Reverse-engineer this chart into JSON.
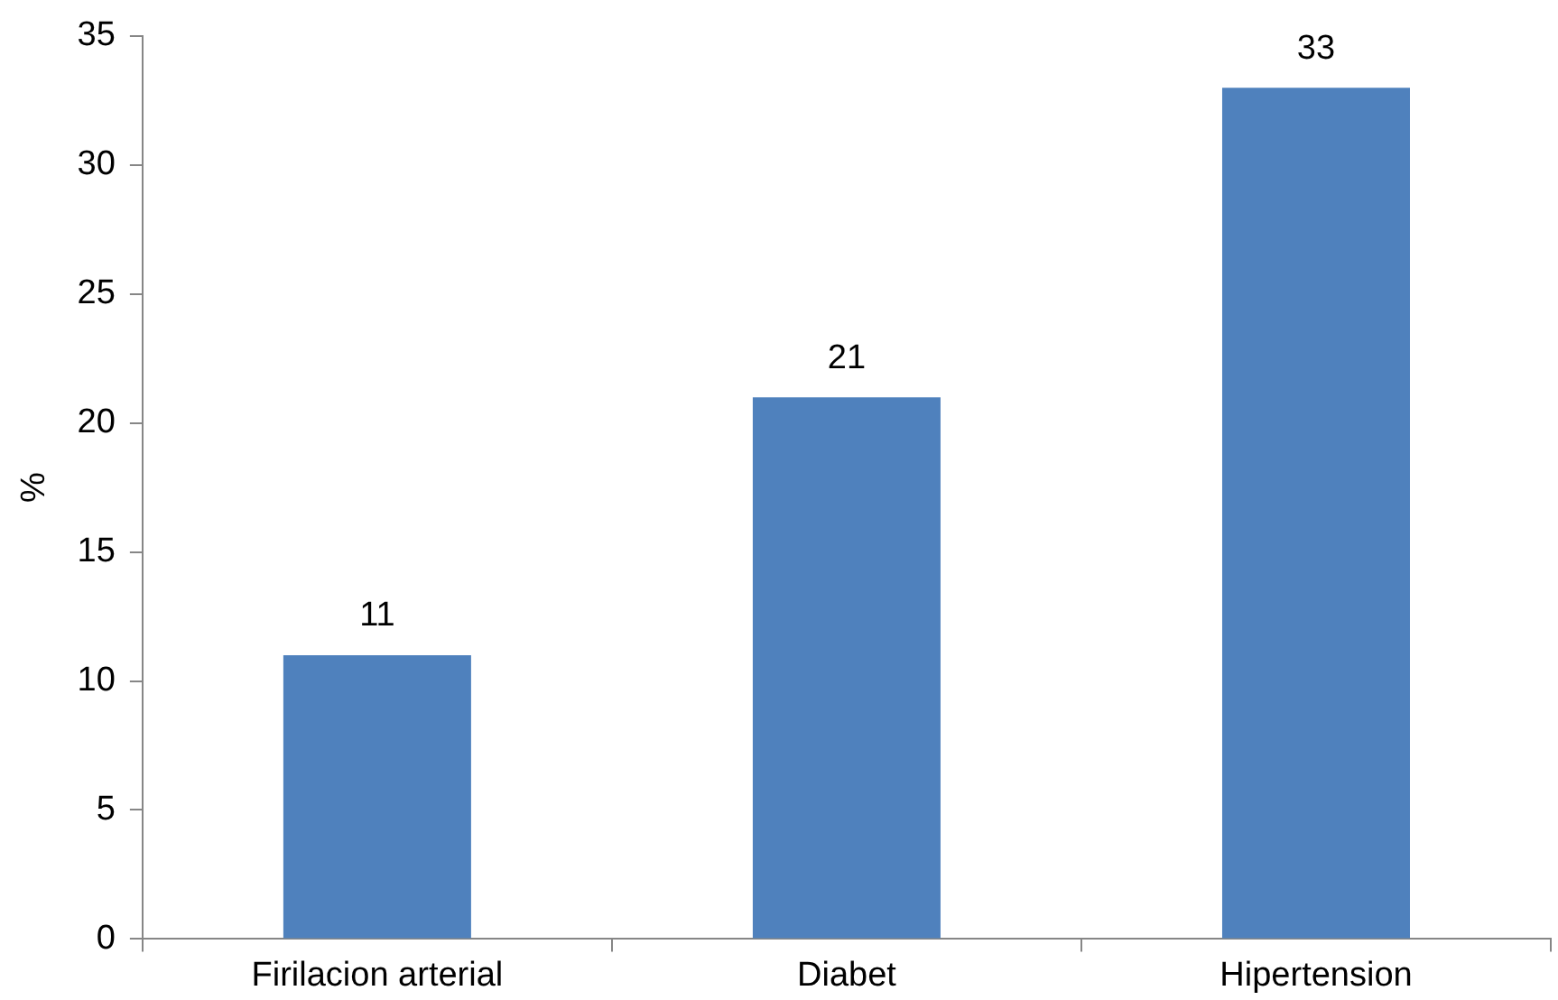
{
  "chart_data": {
    "type": "bar",
    "ylabel": "%",
    "categories": [
      "Firilacion arterial",
      "Diabet",
      "Hipertension"
    ],
    "values": [
      11,
      21,
      33
    ],
    "color": "#4f81bd",
    "ylim": [
      0,
      35
    ],
    "yticks": [
      0,
      5,
      10,
      15,
      20,
      25,
      30,
      35
    ],
    "data_labels": true
  }
}
